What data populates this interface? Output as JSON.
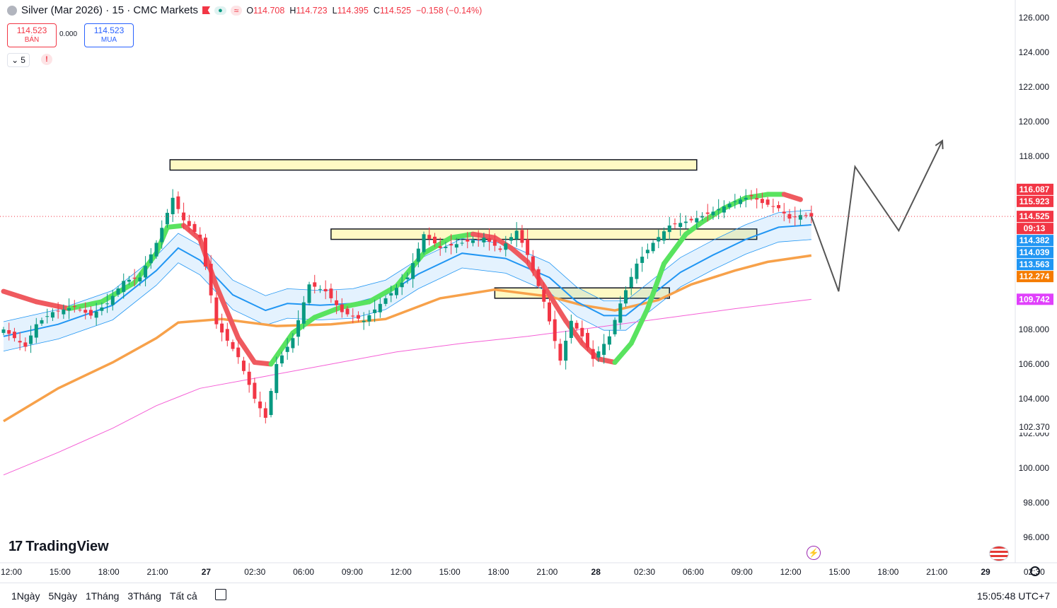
{
  "header": {
    "symbol": "Silver (Mar 2026) · 15 · CMC Markets",
    "ohlc": [
      {
        "k": "O",
        "v": "114.708"
      },
      {
        "k": "H",
        "v": "114.723"
      },
      {
        "k": "L",
        "v": "114.395"
      },
      {
        "k": "C",
        "v": "114.525"
      }
    ],
    "change": "−0.158 (−0.14%)",
    "dot_indicator": "●",
    "wave_indicator": "≈"
  },
  "trade": {
    "sell_price": "114.523",
    "sell_label": "BÁN",
    "spread": "0.000",
    "buy_price": "114.523",
    "buy_label": "MUA"
  },
  "indicators": {
    "count": "5",
    "warning": "!"
  },
  "logo": "TradingView",
  "ranges": [
    "1Ngày",
    "5Ngày",
    "1Tháng",
    "3Tháng",
    "Tất cả"
  ],
  "clock": "15:05:48 UTC+7",
  "icons": {
    "symbol": "silver-coin-icon",
    "flag": "red-flag-icon",
    "calendar": "calendar-icon",
    "events": "lightning-icon",
    "country": "us-flag-icon",
    "settings": "gear-icon"
  },
  "colors": {
    "up": "#089981",
    "down": "#f23645",
    "ema_blue": "#2196f3",
    "ema_orange": "#f7a14a",
    "ema_pink": "#f55fd6",
    "box_fill": "#fff9c4",
    "projection": "#555555"
  },
  "chart_data": {
    "type": "candlestick",
    "symbol": "Silver (Mar 2026)",
    "interval": "15",
    "y_ticks": [
      "126.000",
      "124.000",
      "122.000",
      "120.000",
      "118.000",
      "108.000",
      "106.000",
      "104.000",
      "102.000",
      "100.000",
      "98.000",
      "96.000"
    ],
    "ylim": [
      94.8,
      127.5
    ],
    "x_ticks": [
      "12:00",
      "15:00",
      "18:00",
      "21:00",
      "27",
      "02:30",
      "06:00",
      "09:00",
      "12:00",
      "15:00",
      "18:00",
      "21:00",
      "28",
      "02:30",
      "06:00",
      "09:00",
      "12:00",
      "15:00",
      "18:00",
      "21:00",
      "29",
      "02:30"
    ],
    "current_price": 114.525,
    "price_labels": [
      {
        "text": "116.087",
        "value": 116.087,
        "color": "#f23645"
      },
      {
        "text": "115.923",
        "value": 115.923,
        "color": "#f23645"
      },
      {
        "text": "114.525",
        "value": 114.525,
        "color": "#f23645"
      },
      {
        "text": "09:13",
        "value": 114.2,
        "color": "#f23645"
      },
      {
        "text": "114.382",
        "value": 114.382,
        "color": "#2196f3"
      },
      {
        "text": "114.039",
        "value": 114.039,
        "color": "#2196f3"
      },
      {
        "text": "113.563",
        "value": 113.563,
        "color": "#2196f3"
      },
      {
        "text": "112.274",
        "value": 112.274,
        "color": "#f57c00"
      },
      {
        "text": "109.742",
        "value": 109.742,
        "color": "#e040fb"
      },
      {
        "text": "102.370",
        "value": 102.37,
        "color": "#ffffff"
      }
    ],
    "price_path": [
      [
        0,
        108
      ],
      [
        4,
        107
      ],
      [
        6,
        108.3
      ],
      [
        9,
        109
      ],
      [
        13,
        109.3
      ],
      [
        16,
        108.8
      ],
      [
        19,
        109.5
      ],
      [
        22,
        110.8
      ],
      [
        25,
        111
      ],
      [
        28,
        113
      ],
      [
        31,
        115.6
      ],
      [
        33,
        114.3
      ],
      [
        36,
        113.3
      ],
      [
        39,
        108.3
      ],
      [
        43,
        106.4
      ],
      [
        46,
        104
      ],
      [
        48,
        102.9
      ],
      [
        50,
        106
      ],
      [
        53,
        107.5
      ],
      [
        56,
        110.6
      ],
      [
        59,
        110.2
      ],
      [
        62,
        109
      ],
      [
        66,
        108.5
      ],
      [
        70,
        109.8
      ],
      [
        74,
        111
      ],
      [
        77,
        113.5
      ],
      [
        80,
        112.7
      ],
      [
        84,
        113
      ],
      [
        88,
        113.3
      ],
      [
        91,
        112.6
      ],
      [
        94,
        113.7
      ],
      [
        96,
        112.3
      ],
      [
        99,
        109.6
      ],
      [
        102,
        106.2
      ],
      [
        104,
        108.5
      ],
      [
        106,
        107.6
      ],
      [
        108,
        106.3
      ],
      [
        111,
        107.6
      ],
      [
        113,
        109.5
      ],
      [
        116,
        111.8
      ],
      [
        119,
        113
      ],
      [
        122,
        114
      ],
      [
        126,
        114.3
      ],
      [
        130,
        114.8
      ],
      [
        134,
        115.4
      ],
      [
        137,
        115.7
      ],
      [
        139,
        115.3
      ],
      [
        142,
        115
      ],
      [
        144,
        114.4
      ],
      [
        146,
        114.6
      ],
      [
        148,
        114.52
      ]
    ],
    "ema_fast": [
      [
        0,
        110.2
      ],
      [
        6,
        109.6
      ],
      [
        12,
        109.2
      ],
      [
        18,
        109.6
      ],
      [
        24,
        110.7
      ],
      [
        28,
        112.4
      ],
      [
        30,
        113.9
      ],
      [
        33,
        114
      ],
      [
        36,
        113.2
      ],
      [
        39,
        110.5
      ],
      [
        43,
        107.5
      ],
      [
        46,
        106.1
      ],
      [
        49,
        106
      ],
      [
        53,
        107.8
      ],
      [
        57,
        108.7
      ],
      [
        62,
        109.3
      ],
      [
        67,
        109.6
      ],
      [
        72,
        110.5
      ],
      [
        77,
        112.4
      ],
      [
        82,
        113.3
      ],
      [
        86,
        113.5
      ],
      [
        90,
        113.3
      ],
      [
        93,
        112.7
      ],
      [
        96,
        111.9
      ],
      [
        99,
        110.5
      ],
      [
        103,
        108.5
      ],
      [
        106,
        107.2
      ],
      [
        109,
        106.3
      ],
      [
        112,
        106.1
      ],
      [
        115,
        107.2
      ],
      [
        118,
        109.2
      ],
      [
        121,
        111.8
      ],
      [
        125,
        113.5
      ],
      [
        128,
        114.2
      ],
      [
        132,
        115
      ],
      [
        136,
        115.6
      ],
      [
        140,
        115.8
      ],
      [
        143,
        115.8
      ],
      [
        146,
        115.5
      ]
    ],
    "ema_blue": [
      [
        0,
        107.6
      ],
      [
        10,
        108.3
      ],
      [
        20,
        109.4
      ],
      [
        28,
        111.4
      ],
      [
        32,
        112.7
      ],
      [
        36,
        112
      ],
      [
        42,
        110
      ],
      [
        48,
        109.1
      ],
      [
        52,
        109.5
      ],
      [
        58,
        109.4
      ],
      [
        64,
        109.5
      ],
      [
        70,
        110
      ],
      [
        76,
        111.2
      ],
      [
        84,
        112.4
      ],
      [
        92,
        112.1
      ],
      [
        100,
        111
      ],
      [
        105,
        109.6
      ],
      [
        110,
        108.8
      ],
      [
        114,
        108.8
      ],
      [
        118,
        109.8
      ],
      [
        124,
        111.3
      ],
      [
        130,
        112.3
      ],
      [
        136,
        113.2
      ],
      [
        142,
        113.9
      ],
      [
        148,
        114.04
      ]
    ],
    "ema_orange": [
      [
        0,
        102.7
      ],
      [
        10,
        104.6
      ],
      [
        20,
        106.1
      ],
      [
        28,
        107.5
      ],
      [
        32,
        108.4
      ],
      [
        40,
        108.6
      ],
      [
        50,
        108.2
      ],
      [
        60,
        108.3
      ],
      [
        70,
        108.6
      ],
      [
        80,
        109.8
      ],
      [
        90,
        110.3
      ],
      [
        100,
        109.9
      ],
      [
        106,
        109.4
      ],
      [
        112,
        109.1
      ],
      [
        120,
        109.7
      ],
      [
        126,
        110.6
      ],
      [
        134,
        111.4
      ],
      [
        140,
        111.9
      ],
      [
        148,
        112.27
      ]
    ],
    "ema_pink": [
      [
        0,
        99.6
      ],
      [
        10,
        100.9
      ],
      [
        20,
        102.3
      ],
      [
        28,
        103.6
      ],
      [
        36,
        104.6
      ],
      [
        48,
        105.3
      ],
      [
        60,
        106
      ],
      [
        72,
        106.7
      ],
      [
        84,
        107.2
      ],
      [
        96,
        107.6
      ],
      [
        108,
        108.1
      ],
      [
        120,
        108.6
      ],
      [
        134,
        109.2
      ],
      [
        148,
        109.74
      ]
    ],
    "zones": [
      {
        "name": "resistance-top",
        "x0": 30.5,
        "x1": 127,
        "y_top": 117.8,
        "y_bottom": 117.2
      },
      {
        "name": "mid-zone",
        "x0": 60,
        "x1": 138,
        "y_top": 113.8,
        "y_bottom": 113.2
      },
      {
        "name": "lower-zone",
        "x0": 90,
        "x1": 122,
        "y_top": 110.4,
        "y_bottom": 109.8
      }
    ],
    "projection": [
      [
        148,
        114.52
      ],
      [
        153,
        110.2
      ],
      [
        156,
        117.4
      ],
      [
        164,
        113.7
      ],
      [
        172,
        118.9
      ]
    ],
    "grid": false,
    "legend": "none"
  }
}
